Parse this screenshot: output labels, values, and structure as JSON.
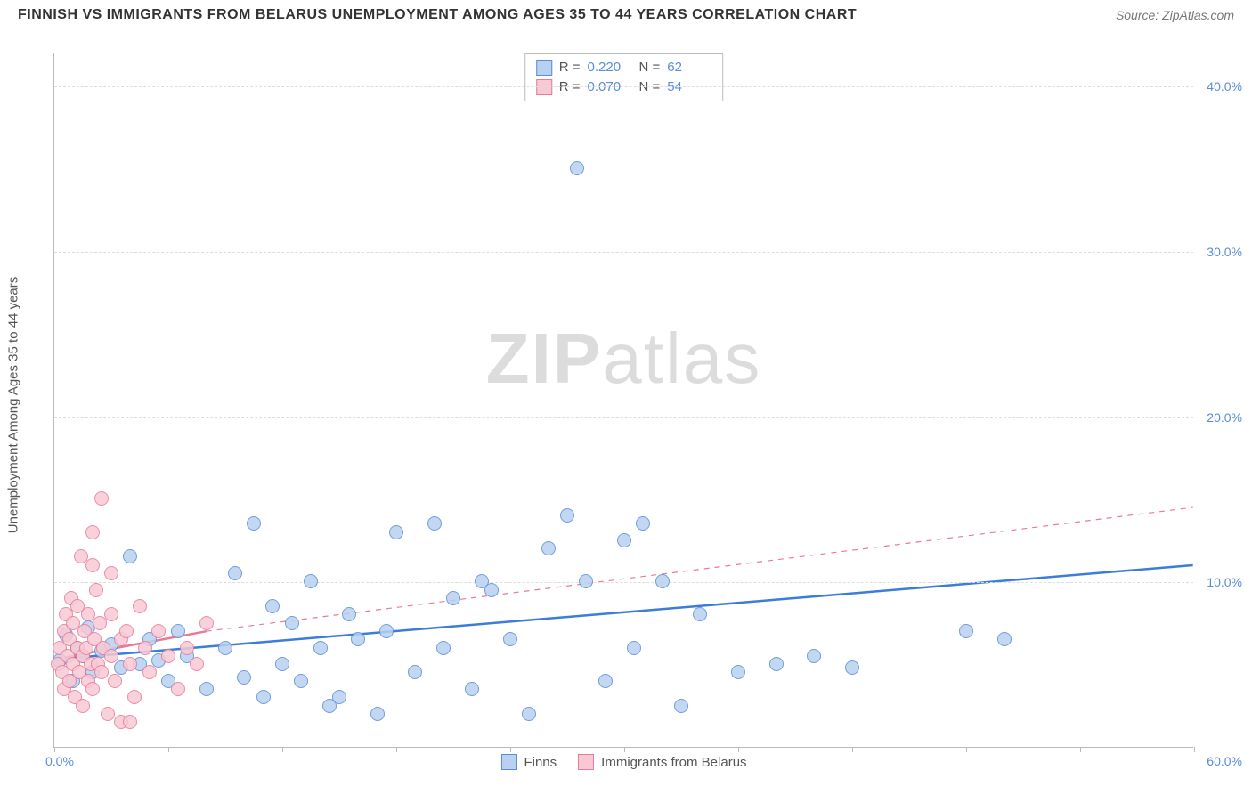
{
  "title": "FINNISH VS IMMIGRANTS FROM BELARUS UNEMPLOYMENT AMONG AGES 35 TO 44 YEARS CORRELATION CHART",
  "source_label": "Source: ",
  "source_value": "ZipAtlas.com",
  "y_axis_label": "Unemployment Among Ages 35 to 44 years",
  "watermark_bold": "ZIP",
  "watermark_light": "atlas",
  "xlim": [
    0,
    60
  ],
  "ylim": [
    0,
    42
  ],
  "y_ticks": [
    10,
    20,
    30,
    40
  ],
  "y_tick_labels": [
    "10.0%",
    "20.0%",
    "30.0%",
    "40.0%"
  ],
  "x_origin_label": "0.0%",
  "x_max_label": "60.0%",
  "x_ticks": [
    0,
    6,
    12,
    18,
    24,
    30,
    36,
    42,
    48,
    54,
    60
  ],
  "colors": {
    "blue_fill": "#b8d1f0",
    "blue_stroke": "#5b8dd6",
    "pink_fill": "#f7c9d4",
    "pink_stroke": "#e77a9a",
    "blue_line": "#3b7dd8",
    "pink_line": "#e77a9a",
    "grid": "#dddddd",
    "axis": "#bbbbbb",
    "tick_text": "#5b8dd6",
    "title_text": "#333333"
  },
  "marker_radius": 8,
  "series": [
    {
      "key": "finns",
      "label": "Finns",
      "color_fill": "#b8d1f0",
      "color_stroke": "#5b8dd6",
      "R_label": "R = ",
      "R_value": "0.220",
      "N_label": "N = ",
      "N_value": "62",
      "trend": {
        "x1": 0,
        "y1": 5.3,
        "x2": 60,
        "y2": 11.0,
        "dash": false,
        "width": 2.5,
        "color": "#3b7dd8"
      },
      "points": [
        [
          0.3,
          5.2
        ],
        [
          0.6,
          6.8
        ],
        [
          1.0,
          4.0
        ],
        [
          1.2,
          6.0
        ],
        [
          1.5,
          5.5
        ],
        [
          1.8,
          7.2
        ],
        [
          2.0,
          4.5
        ],
        [
          2.5,
          5.8
        ],
        [
          3.0,
          6.2
        ],
        [
          3.5,
          4.8
        ],
        [
          4.0,
          11.5
        ],
        [
          4.5,
          5.0
        ],
        [
          5.0,
          6.5
        ],
        [
          5.5,
          5.2
        ],
        [
          6.0,
          4.0
        ],
        [
          6.5,
          7.0
        ],
        [
          7.0,
          5.5
        ],
        [
          8.0,
          3.5
        ],
        [
          9.0,
          6.0
        ],
        [
          9.5,
          10.5
        ],
        [
          10.0,
          4.2
        ],
        [
          10.5,
          13.5
        ],
        [
          11.0,
          3.0
        ],
        [
          11.5,
          8.5
        ],
        [
          12.0,
          5.0
        ],
        [
          12.5,
          7.5
        ],
        [
          13.0,
          4.0
        ],
        [
          13.5,
          10.0
        ],
        [
          14.0,
          6.0
        ],
        [
          14.5,
          2.5
        ],
        [
          15.0,
          3.0
        ],
        [
          15.5,
          8.0
        ],
        [
          16.0,
          6.5
        ],
        [
          17.0,
          2.0
        ],
        [
          17.5,
          7.0
        ],
        [
          18.0,
          13.0
        ],
        [
          19.0,
          4.5
        ],
        [
          20.0,
          13.5
        ],
        [
          20.5,
          6.0
        ],
        [
          21.0,
          9.0
        ],
        [
          22.0,
          3.5
        ],
        [
          22.5,
          10.0
        ],
        [
          23.0,
          9.5
        ],
        [
          24.0,
          6.5
        ],
        [
          25.0,
          2.0
        ],
        [
          26.0,
          12.0
        ],
        [
          27.0,
          14.0
        ],
        [
          27.5,
          35.0
        ],
        [
          28.0,
          10.0
        ],
        [
          29.0,
          4.0
        ],
        [
          30.0,
          12.5
        ],
        [
          30.5,
          6.0
        ],
        [
          31.0,
          13.5
        ],
        [
          32.0,
          10.0
        ],
        [
          33.0,
          2.5
        ],
        [
          34.0,
          8.0
        ],
        [
          36.0,
          4.5
        ],
        [
          38.0,
          5.0
        ],
        [
          40.0,
          5.5
        ],
        [
          42.0,
          4.8
        ],
        [
          48.0,
          7.0
        ],
        [
          50.0,
          6.5
        ]
      ]
    },
    {
      "key": "belarus",
      "label": "Immigrants from Belarus",
      "color_fill": "#f7c9d4",
      "color_stroke": "#e77a9a",
      "R_label": "R = ",
      "R_value": "0.070",
      "N_label": "N = ",
      "N_value": "54",
      "trend_solid": {
        "x1": 0,
        "y1": 5.3,
        "x2": 8,
        "y2": 7.0,
        "dash": false,
        "width": 2.5,
        "color": "#e77a9a"
      },
      "trend_dash": {
        "x1": 8,
        "y1": 7.0,
        "x2": 60,
        "y2": 14.5,
        "dash": true,
        "width": 1.2,
        "color": "#e77a9a"
      },
      "points": [
        [
          0.2,
          5.0
        ],
        [
          0.3,
          6.0
        ],
        [
          0.4,
          4.5
        ],
        [
          0.5,
          7.0
        ],
        [
          0.5,
          3.5
        ],
        [
          0.6,
          8.0
        ],
        [
          0.7,
          5.5
        ],
        [
          0.8,
          6.5
        ],
        [
          0.8,
          4.0
        ],
        [
          0.9,
          9.0
        ],
        [
          1.0,
          5.0
        ],
        [
          1.0,
          7.5
        ],
        [
          1.1,
          3.0
        ],
        [
          1.2,
          6.0
        ],
        [
          1.2,
          8.5
        ],
        [
          1.3,
          4.5
        ],
        [
          1.4,
          11.5
        ],
        [
          1.5,
          5.5
        ],
        [
          1.5,
          2.5
        ],
        [
          1.6,
          7.0
        ],
        [
          1.7,
          6.0
        ],
        [
          1.8,
          4.0
        ],
        [
          1.8,
          8.0
        ],
        [
          1.9,
          5.0
        ],
        [
          2.0,
          13.0
        ],
        [
          2.0,
          3.5
        ],
        [
          2.1,
          6.5
        ],
        [
          2.2,
          9.5
        ],
        [
          2.3,
          5.0
        ],
        [
          2.4,
          7.5
        ],
        [
          2.5,
          4.5
        ],
        [
          2.5,
          15.0
        ],
        [
          2.6,
          6.0
        ],
        [
          2.8,
          2.0
        ],
        [
          3.0,
          8.0
        ],
        [
          3.0,
          5.5
        ],
        [
          3.2,
          4.0
        ],
        [
          3.5,
          6.5
        ],
        [
          3.5,
          1.5
        ],
        [
          3.8,
          7.0
        ],
        [
          4.0,
          5.0
        ],
        [
          4.2,
          3.0
        ],
        [
          4.5,
          8.5
        ],
        [
          4.8,
          6.0
        ],
        [
          5.0,
          4.5
        ],
        [
          5.5,
          7.0
        ],
        [
          6.0,
          5.5
        ],
        [
          6.5,
          3.5
        ],
        [
          7.0,
          6.0
        ],
        [
          7.5,
          5.0
        ],
        [
          8.0,
          7.5
        ],
        [
          4.0,
          1.5
        ],
        [
          3.0,
          10.5
        ],
        [
          2.0,
          11.0
        ]
      ]
    }
  ]
}
